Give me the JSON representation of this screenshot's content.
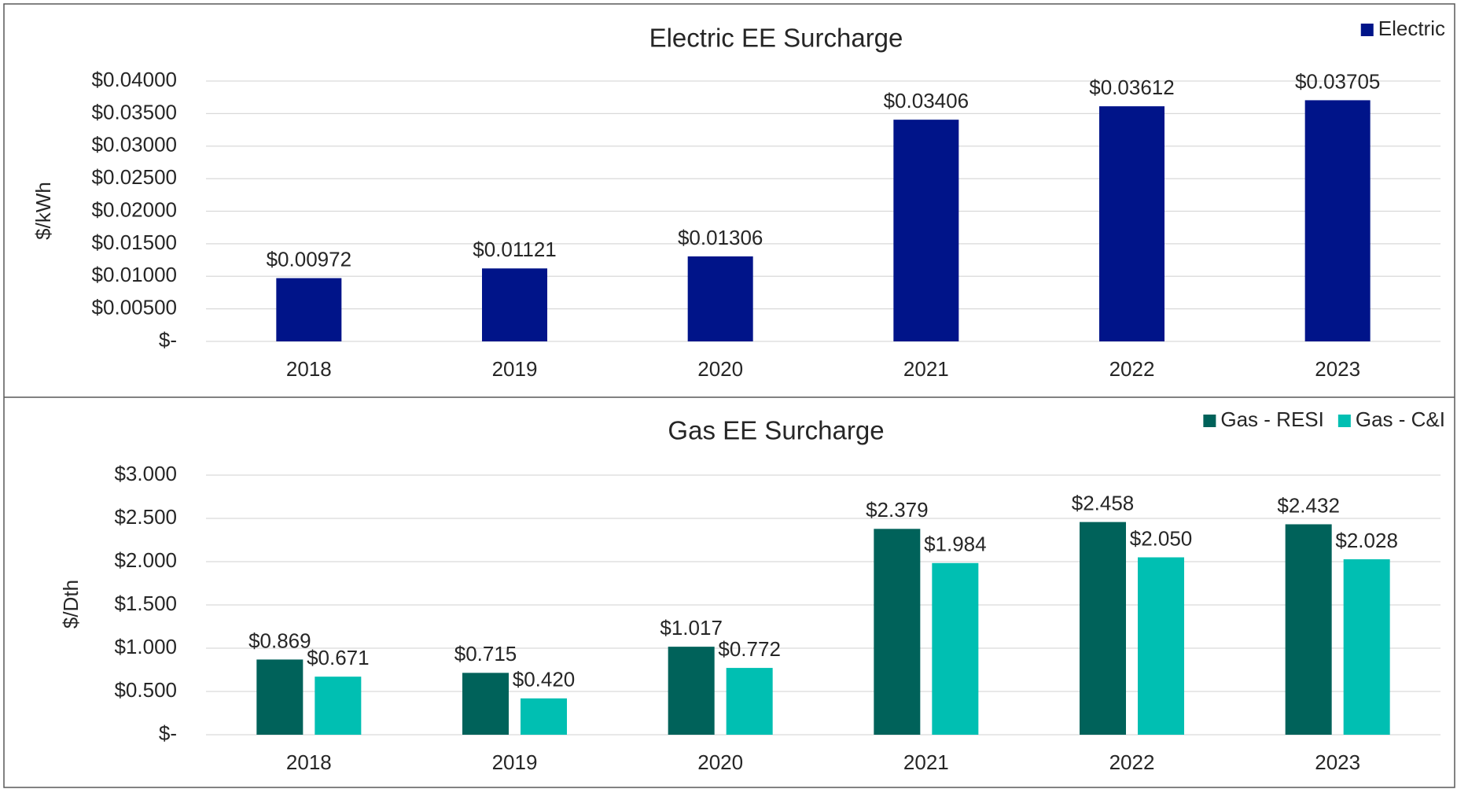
{
  "chart_data": [
    {
      "type": "bar",
      "title": "Electric EE Surcharge",
      "y_label": "$/kWh",
      "categories": [
        "2018",
        "2019",
        "2020",
        "2021",
        "2022",
        "2023"
      ],
      "series": [
        {
          "name": "Electric",
          "color": "#001489",
          "values": [
            0.00972,
            0.01121,
            0.01306,
            0.03406,
            0.03612,
            0.03705
          ],
          "value_labels": [
            "$0.00972",
            "$0.01121",
            "$0.01306",
            "$0.03406",
            "$0.03612",
            "$0.03705"
          ]
        }
      ],
      "ylim": [
        0,
        0.04
      ],
      "yticks": [
        {
          "value": 0,
          "label": "$-"
        },
        {
          "value": 0.005,
          "label": "$0.00500"
        },
        {
          "value": 0.01,
          "label": "$0.01000"
        },
        {
          "value": 0.015,
          "label": "$0.01500"
        },
        {
          "value": 0.02,
          "label": "$0.02000"
        },
        {
          "value": 0.025,
          "label": "$0.02500"
        },
        {
          "value": 0.03,
          "label": "$0.03000"
        },
        {
          "value": 0.035,
          "label": "$0.03500"
        },
        {
          "value": 0.04,
          "label": "$0.04000"
        }
      ],
      "grid": true,
      "legend": "top-right"
    },
    {
      "type": "bar",
      "title": "Gas EE Surcharge",
      "y_label": "$/Dth",
      "categories": [
        "2018",
        "2019",
        "2020",
        "2021",
        "2022",
        "2023"
      ],
      "series": [
        {
          "name": "Gas - RESI",
          "color": "#00625A",
          "values": [
            0.869,
            0.715,
            1.017,
            2.379,
            2.458,
            2.432
          ],
          "value_labels": [
            "$0.869",
            "$0.715",
            "$1.017",
            "$2.379",
            "$2.458",
            "$2.432"
          ]
        },
        {
          "name": "Gas - C&I",
          "color": "#00BFB2",
          "values": [
            0.671,
            0.42,
            0.772,
            1.984,
            2.05,
            2.028
          ],
          "value_labels": [
            "$0.671",
            "$0.420",
            "$0.772",
            "$1.984",
            "$2.050",
            "$2.028"
          ]
        }
      ],
      "ylim": [
        0,
        3
      ],
      "yticks": [
        {
          "value": 0,
          "label": "$-"
        },
        {
          "value": 0.5,
          "label": "$0.500"
        },
        {
          "value": 1,
          "label": "$1.000"
        },
        {
          "value": 1.5,
          "label": "$1.500"
        },
        {
          "value": 2,
          "label": "$2.000"
        },
        {
          "value": 2.5,
          "label": "$2.500"
        },
        {
          "value": 3,
          "label": "$3.000"
        }
      ],
      "grid": true,
      "legend": "top-right"
    }
  ]
}
